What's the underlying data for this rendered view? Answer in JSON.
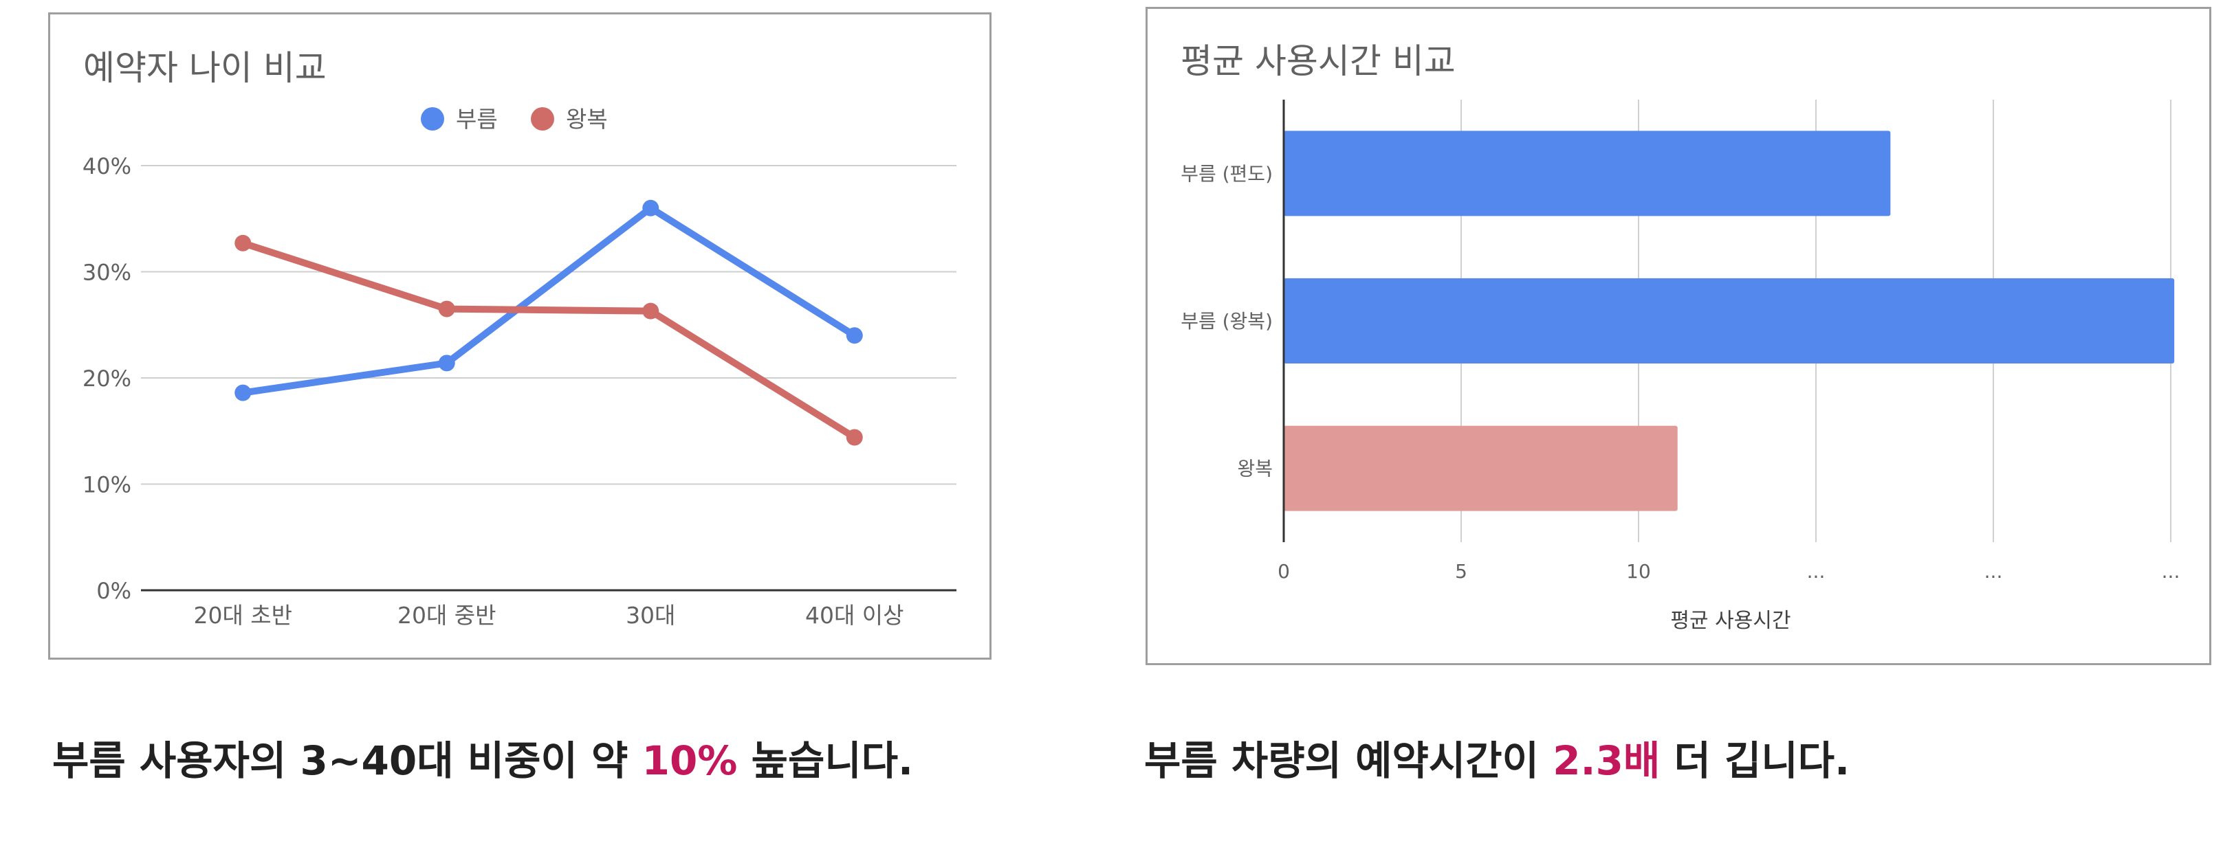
{
  "left_chart": {
    "title": "예약자 나이 비교",
    "legend": [
      "부름",
      "왕복"
    ],
    "colors": {
      "부름": "#5588ec",
      "왕복": "#d06c68"
    },
    "chart_data": {
      "type": "line",
      "title": "예약자 나이 비교",
      "categories": [
        "20대 초반",
        "20대 중반",
        "30대",
        "40대 이상"
      ],
      "series": [
        {
          "name": "부름",
          "values": [
            18.6,
            21.4,
            36.0,
            24.0
          ]
        },
        {
          "name": "왕복",
          "values": [
            32.7,
            26.5,
            26.3,
            14.4
          ]
        }
      ],
      "yticks": [
        "0%",
        "10%",
        "20%",
        "30%",
        "40%"
      ],
      "ylim": [
        0,
        40
      ],
      "unit": "%",
      "grid": true,
      "legend_position": "top"
    }
  },
  "right_chart": {
    "title": "평균 사용시간 비교",
    "colors": {
      "부름 (편도)": "#5588ec",
      "부름 (왕복)": "#5588ec",
      "왕복": "#e09b99"
    },
    "chart_data": {
      "type": "bar",
      "orientation": "horizontal",
      "title": "평균 사용시간 비교",
      "categories": [
        "부름 (편도)",
        "부름 (왕복)",
        "왕복"
      ],
      "values": [
        17.1,
        25.1,
        11.1
      ],
      "xlabel": "평균 사용시간",
      "xticks": [
        "0",
        "5",
        "10",
        "...",
        "...",
        "..."
      ],
      "xlim": [
        0,
        25
      ],
      "grid": true
    }
  },
  "captions": {
    "left": {
      "before": "부름 사용자의 3~40대 비중이 약 ",
      "highlight": "10%",
      "after": " 높습니다."
    },
    "right": {
      "before": "부름 차량의 예약시간이 ",
      "highlight": "2.3배",
      "after": " 더 깁니다."
    }
  }
}
